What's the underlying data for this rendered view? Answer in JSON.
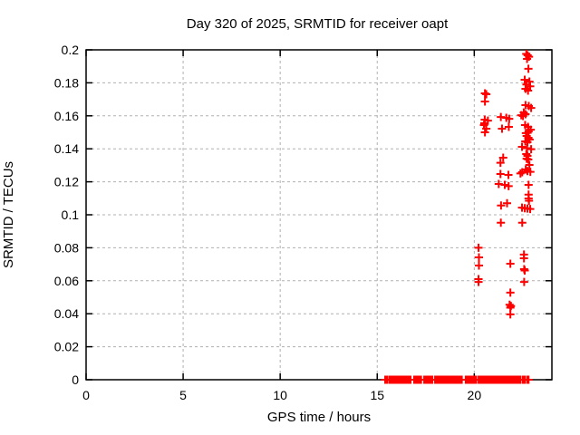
{
  "chart_data": {
    "type": "scatter",
    "title": "Day 320 of 2025, SRMTID for receiver oapt",
    "xlabel": "GPS time / hours",
    "ylabel": "SRMTID / TECUs",
    "xlim": [
      0,
      24
    ],
    "ylim": [
      0,
      0.2
    ],
    "grid": true,
    "legend": "none",
    "marker": "plus",
    "marker_color": "#ff0000",
    "grid_color": "#b0b0b0",
    "border_color": "#000000",
    "xticks": {
      "values": [
        0,
        5,
        10,
        15,
        20
      ],
      "labels": [
        "0",
        "5",
        "10",
        "15",
        "20"
      ]
    },
    "yticks": {
      "values": [
        0,
        0.02,
        0.04,
        0.06,
        0.08,
        0.1,
        0.12,
        0.14,
        0.16,
        0.18,
        0.2
      ],
      "labels": [
        "0",
        "0.02",
        "0.04",
        "0.06",
        "0.08",
        "0.1",
        "0.12",
        "0.14",
        "0.16",
        "0.18",
        "0.2"
      ]
    },
    "series": [
      {
        "name": "SRMTID",
        "points": [
          [
            20.22,
            0.08
          ],
          [
            20.24,
            0.0742
          ],
          [
            20.24,
            0.0692
          ],
          [
            20.22,
            0.061
          ],
          [
            20.22,
            0.0593
          ],
          [
            20.55,
            0.1736
          ],
          [
            20.62,
            0.1731
          ],
          [
            20.55,
            0.1687
          ],
          [
            20.54,
            0.1577
          ],
          [
            20.7,
            0.1571
          ],
          [
            20.52,
            0.1555
          ],
          [
            20.5,
            0.1544
          ],
          [
            20.62,
            0.1522
          ],
          [
            20.55,
            0.15
          ],
          [
            21.37,
            0.1593
          ],
          [
            21.65,
            0.1588
          ],
          [
            21.8,
            0.1582
          ],
          [
            21.43,
            0.1522
          ],
          [
            21.78,
            0.1533
          ],
          [
            21.49,
            0.1346
          ],
          [
            21.35,
            0.1315
          ],
          [
            21.35,
            0.1247
          ],
          [
            21.76,
            0.1242
          ],
          [
            21.26,
            0.1187
          ],
          [
            21.57,
            0.1181
          ],
          [
            21.77,
            0.1174
          ],
          [
            21.38,
            0.1056
          ],
          [
            21.69,
            0.107
          ],
          [
            21.37,
            0.0952
          ],
          [
            21.86,
            0.0703
          ],
          [
            21.86,
            0.0528
          ],
          [
            21.82,
            0.0455
          ],
          [
            21.89,
            0.0447
          ],
          [
            21.86,
            0.0437
          ],
          [
            21.86,
            0.0396
          ],
          [
            22.68,
            0.1975
          ],
          [
            22.75,
            0.1967
          ],
          [
            22.82,
            0.1958
          ],
          [
            22.72,
            0.1945
          ],
          [
            22.79,
            0.1885
          ],
          [
            22.6,
            0.1819
          ],
          [
            22.84,
            0.1808
          ],
          [
            22.69,
            0.179
          ],
          [
            22.88,
            0.1779
          ],
          [
            22.64,
            0.1764
          ],
          [
            22.77,
            0.1753
          ],
          [
            22.64,
            0.1665
          ],
          [
            22.81,
            0.1659
          ],
          [
            22.93,
            0.1648
          ],
          [
            22.55,
            0.162
          ],
          [
            22.64,
            0.161
          ],
          [
            22.42,
            0.1604
          ],
          [
            22.51,
            0.1599
          ],
          [
            22.62,
            0.1544
          ],
          [
            22.77,
            0.1533
          ],
          [
            22.91,
            0.1516
          ],
          [
            22.66,
            0.1495
          ],
          [
            22.8,
            0.1505
          ],
          [
            22.7,
            0.1478
          ],
          [
            22.79,
            0.1467
          ],
          [
            22.85,
            0.1456
          ],
          [
            22.63,
            0.1445
          ],
          [
            22.74,
            0.144
          ],
          [
            22.46,
            0.1412
          ],
          [
            22.72,
            0.1404
          ],
          [
            22.93,
            0.1398
          ],
          [
            22.68,
            0.1368
          ],
          [
            22.74,
            0.1357
          ],
          [
            22.7,
            0.134
          ],
          [
            22.78,
            0.1335
          ],
          [
            22.84,
            0.1302
          ],
          [
            22.38,
            0.1251
          ],
          [
            22.47,
            0.1258
          ],
          [
            22.65,
            0.1275
          ],
          [
            22.74,
            0.1265
          ],
          [
            22.89,
            0.126
          ],
          [
            22.8,
            0.1181
          ],
          [
            22.8,
            0.1122
          ],
          [
            22.8,
            0.1099
          ],
          [
            22.82,
            0.1085
          ],
          [
            22.46,
            0.1043
          ],
          [
            22.6,
            0.104
          ],
          [
            22.74,
            0.1038
          ],
          [
            22.88,
            0.1035
          ],
          [
            22.47,
            0.0952
          ],
          [
            22.56,
            0.0759
          ],
          [
            22.56,
            0.0736
          ],
          [
            22.57,
            0.067
          ],
          [
            22.6,
            0.0662
          ],
          [
            22.57,
            0.0593
          ]
        ],
        "zero_value_runs_hours": [
          [
            15.41,
            15.55
          ],
          [
            15.64,
            16.72
          ],
          [
            16.9,
            17.28
          ],
          [
            17.42,
            17.88
          ],
          [
            17.98,
            18.54
          ],
          [
            18.58,
            19.38
          ],
          [
            19.56,
            20.12
          ],
          [
            20.22,
            22.41
          ],
          [
            22.5,
            22.64
          ],
          [
            22.74,
            22.83
          ]
        ]
      }
    ]
  }
}
